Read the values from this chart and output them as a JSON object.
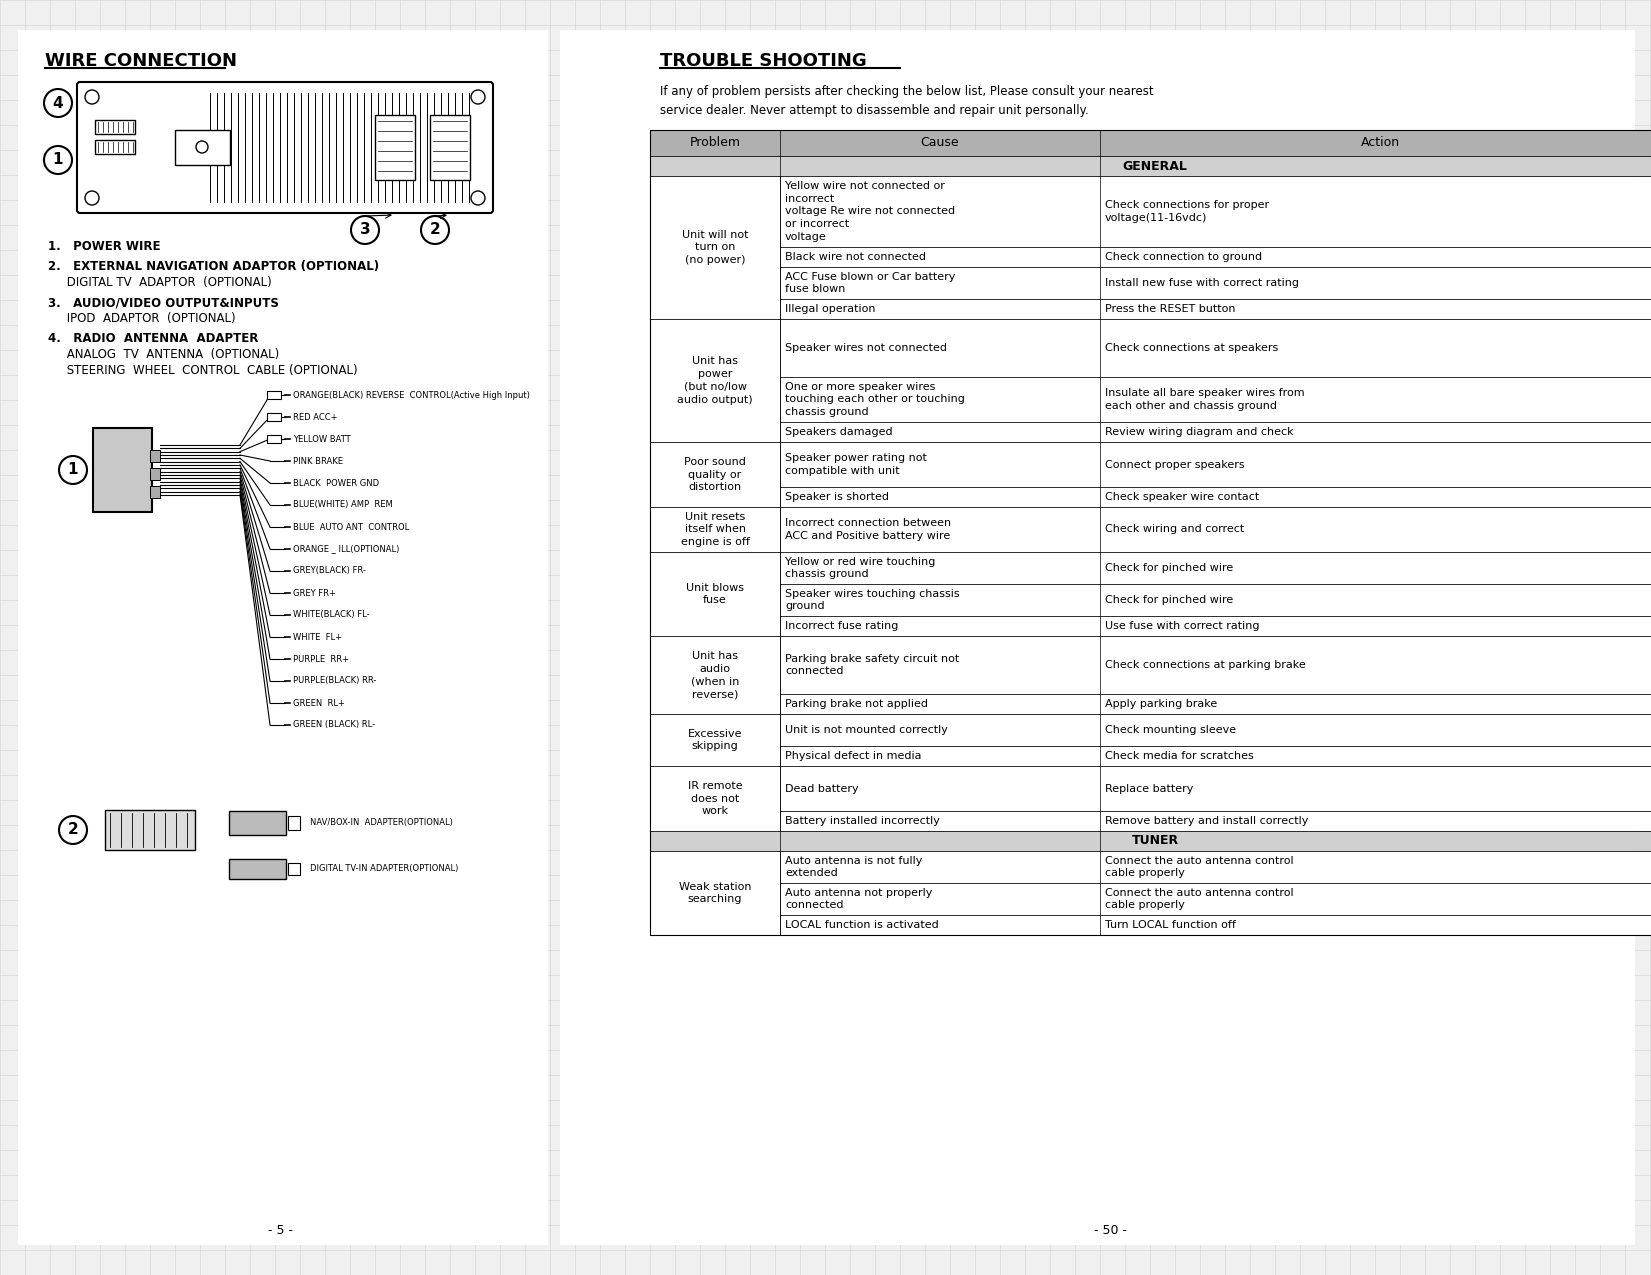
{
  "bg_color": "#f0f0f0",
  "page_bg": "#ffffff",
  "grid_color": "#d0d0d0",
  "left_title": "WIRE CONNECTION",
  "right_title": "TROUBLE SHOOTING",
  "page_numbers": [
    "- 5 -",
    "- 50 -"
  ],
  "items": [
    "1.   POWER WIRE",
    "2.   EXTERNAL NAVIGATION ADAPTOR (OPTIONAL)\n     DIGITAL TV  ADAPTOR  (OPTIONAL)",
    "3.   AUDIO/VIDEO OUTPUT&INPUTS\n     IPOD  ADAPTOR  (OPTIONAL)",
    "4.   RADIO  ANTENNA  ADAPTER\n     ANALOG  TV  ANTENNA  (OPTIONAL)\n     STEERING  WHEEL  CONTROL  CABLE (OPTIONAL)"
  ],
  "wire_labels": [
    "ORANGE(BLACK) REVERSE  CONTROL(Active High Input)",
    "RED ACC+",
    "YELLOW BATT",
    "PINK BRAKE",
    "BLACK  POWER GND",
    "BLUE(WHITE) AMP  REM",
    "BLUE  AUTO ANT  CONTROL",
    "ORANGE _ ILL(OPTIONAL)",
    "GREY(BLACK) FR-",
    "GREY FR+",
    "WHITE(BLACK) FL-",
    "WHITE  FL+",
    "PURPLE  RR+",
    "PURPLE(BLACK) RR-",
    "GREEN  RL+",
    "GREEN (BLACK) RL-"
  ],
  "trouble_intro": "If any of problem persists after checking the below list, Please consult your nearest\nservice dealer. Never attempt to disassemble and repair unit personally.",
  "table_header": [
    "Problem",
    "Cause",
    "Action"
  ],
  "table_section1": "GENERAL",
  "table_section2": "TUNER",
  "table_rows": [
    [
      "Unit will not\nturn on\n(no power)",
      "Yellow wire not connected or\nincorrect\nvoltage Re wire not connected\nor incorrect\nvoltage",
      "Check connections for proper\nvoltage(11-16vdc)"
    ],
    [
      "",
      "Black wire not connected",
      "Check connection to ground"
    ],
    [
      "",
      "ACC Fuse blown or Car battery\nfuse blown",
      "Install new fuse with correct rating"
    ],
    [
      "",
      "Illegal operation",
      "Press the RESET button"
    ],
    [
      "Unit has\npower\n(but no/low\naudio output)",
      "Speaker wires not connected",
      "Check connections at speakers"
    ],
    [
      "",
      "One or more speaker wires\ntouching each other or touching\nchassis ground",
      "Insulate all bare speaker wires from\neach other and chassis ground"
    ],
    [
      "",
      "Speakers damaged",
      "Review wiring diagram and check"
    ],
    [
      "Poor sound\nquality or\ndistortion",
      "Speaker power rating not\ncompatible with unit",
      "Connect proper speakers"
    ],
    [
      "",
      "Speaker is shorted",
      "Check speaker wire contact"
    ],
    [
      "Unit resets\nitself when\nengine is off",
      "Incorrect connection between\nACC and Positive battery wire",
      "Check wiring and correct"
    ],
    [
      "Unit blows\nfuse",
      "Yellow or red wire touching\nchassis ground",
      "Check for pinched wire"
    ],
    [
      "",
      "Speaker wires touching chassis\nground",
      "Check for pinched wire"
    ],
    [
      "",
      "Incorrect fuse rating",
      "Use fuse with correct rating"
    ],
    [
      "Unit has\naudio\n(when in\nreverse)",
      "Parking brake safety circuit not\nconnected",
      "Check connections at parking brake"
    ],
    [
      "",
      "Parking brake not applied",
      "Apply parking brake"
    ],
    [
      "Excessive\nskipping",
      "Unit is not mounted correctly",
      "Check mounting sleeve"
    ],
    [
      "",
      "Physical defect in media",
      "Check media for scratches"
    ],
    [
      "IR remote\ndoes not\nwork",
      "Dead battery",
      "Replace battery"
    ],
    [
      "",
      "Battery installed incorrectly",
      "Remove battery and install correctly"
    ],
    [
      "Weak station\nsearching",
      "Auto antenna is not fully\nextended",
      "Connect the auto antenna control\ncable properly"
    ],
    [
      "",
      "Auto antenna not properly\nconnected",
      "Connect the auto antenna control\ncable properly"
    ],
    [
      "",
      "LOCAL function is activated",
      "Turn LOCAL function off"
    ]
  ]
}
